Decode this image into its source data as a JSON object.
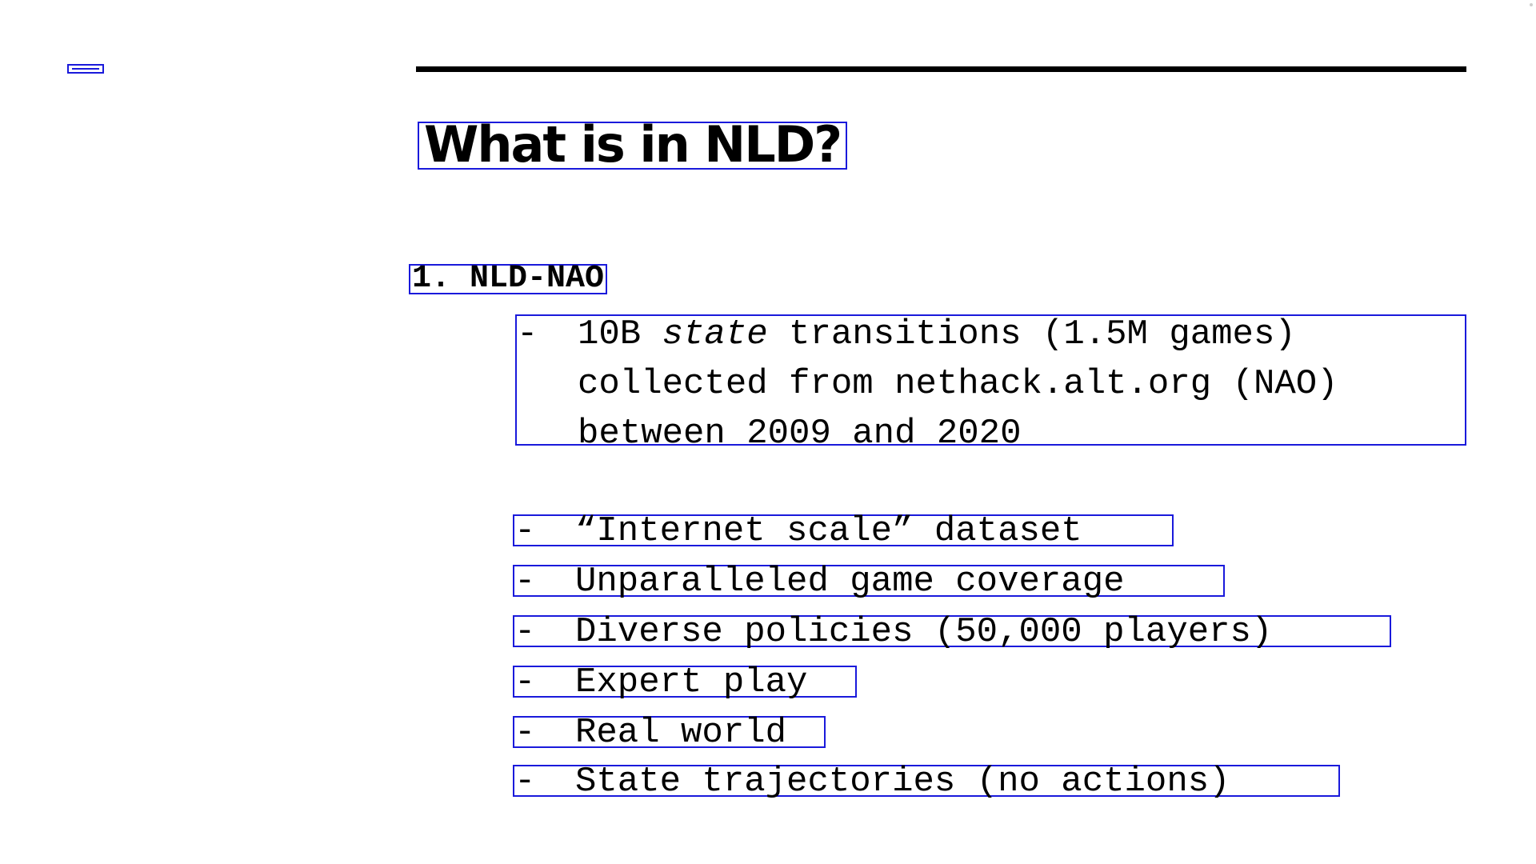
{
  "slide": {
    "title": "What is in NLD?",
    "section": {
      "number": "1.",
      "name": "NLD-NAO",
      "heading": "1.  NLD-NAO"
    },
    "bullet_marker": "-",
    "first_bullet": {
      "prefix": "10B ",
      "emphasis": "state",
      "rest": " transitions (1.5M games)\ncollected from nethack.alt.org (NAO)\nbetween 2009 and 2020"
    },
    "bullets": [
      "“Internet scale” dataset",
      "Unparalleled game coverage",
      "Diverse policies (50,000 players)",
      "Expert play",
      "Real world",
      "State trajectories (no actions)"
    ]
  },
  "colors": {
    "annotation_box": "#1a1adb",
    "text": "#000000",
    "background": "#ffffff"
  }
}
